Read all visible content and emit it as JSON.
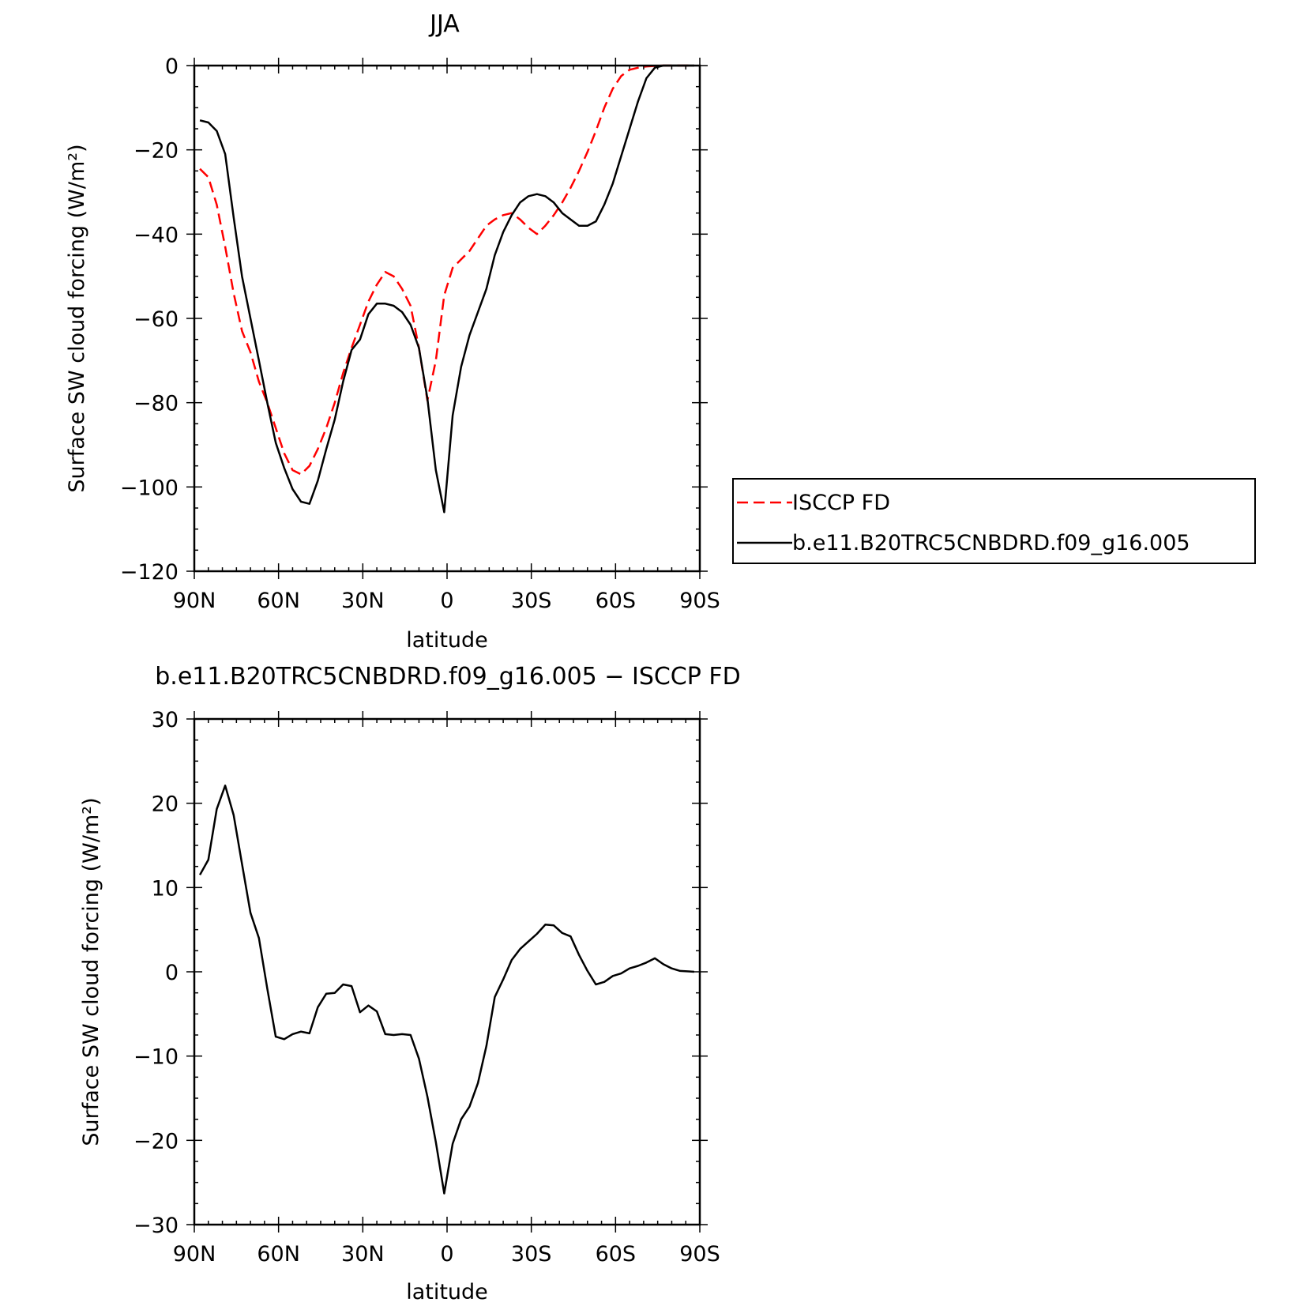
{
  "chart_data": [
    {
      "type": "line",
      "title": "JJA",
      "xlabel": "latitude",
      "ylabel": "Surface SW cloud forcing (W/m²)",
      "xlim": [
        90,
        -90
      ],
      "ylim": [
        -120,
        0
      ],
      "xticks": [
        90,
        60,
        30,
        0,
        -30,
        -60,
        -90
      ],
      "xtick_labels": [
        "90N",
        "60N",
        "30N",
        "0",
        "30S",
        "60S",
        "90S"
      ],
      "yticks": [
        0,
        -20,
        -40,
        -60,
        -80,
        -100,
        -120
      ],
      "ytick_labels": [
        "0",
        "−20",
        "−40",
        "−60",
        "−80",
        "−100",
        "−120"
      ],
      "legend_position": "right",
      "grid": false,
      "series": [
        {
          "name": "ISCCP FD",
          "color": "#ff0000",
          "dash": "dashed",
          "x": [
            88,
            85,
            82,
            79,
            76,
            73,
            70,
            67,
            64,
            61,
            58,
            55,
            52,
            49,
            46,
            43,
            40,
            37,
            34,
            31,
            28,
            25,
            22,
            19,
            16,
            13,
            10,
            7,
            4,
            1,
            -2,
            -5,
            -8,
            -11,
            -14,
            -17,
            -20,
            -23,
            -26,
            -29,
            -32,
            -35,
            -38,
            -41,
            -44,
            -47,
            -50,
            -53,
            -56,
            -59,
            -62,
            -65,
            -68,
            -71,
            -74,
            -77,
            -80,
            -83,
            -86,
            -88
          ],
          "y": [
            -24.5,
            -26.5,
            -33,
            -43,
            -54,
            -63,
            -68,
            -75,
            -80,
            -86,
            -92,
            -96,
            -97,
            -95,
            -91,
            -86,
            -80,
            -73,
            -67,
            -61.5,
            -56,
            -52,
            -49,
            -50,
            -53,
            -57,
            -67,
            -79.5,
            -70,
            -54.5,
            -48,
            -46,
            -44,
            -41,
            -38,
            -36.5,
            -35.5,
            -35,
            -36.5,
            -38.5,
            -40,
            -38,
            -35.5,
            -32.5,
            -29,
            -25,
            -20.5,
            -15.5,
            -10,
            -5.5,
            -2.5,
            -1,
            -0.5,
            -0.2,
            -0.1,
            0,
            0,
            0,
            0,
            0
          ]
        },
        {
          "name": "b.e11.B20TRC5CNBDRD.f09_g16.005",
          "color": "#000000",
          "dash": "solid",
          "x": [
            88,
            85,
            82,
            79,
            76,
            73,
            70,
            67,
            64,
            61,
            58,
            55,
            52,
            49,
            46,
            43,
            40,
            37,
            34,
            31,
            28,
            25,
            22,
            19,
            16,
            13,
            10,
            7,
            4,
            1,
            -2,
            -5,
            -8,
            -11,
            -14,
            -17,
            -20,
            -23,
            -26,
            -29,
            -32,
            -35,
            -38,
            -41,
            -44,
            -47,
            -50,
            -53,
            -56,
            -59,
            -62,
            -65,
            -68,
            -71,
            -74,
            -77,
            -80,
            -83,
            -86,
            -88
          ],
          "y": [
            -13,
            -13.5,
            -15.5,
            -21,
            -36,
            -50,
            -60,
            -70,
            -80,
            -89.5,
            -95.5,
            -100.5,
            -103.5,
            -104,
            -98.5,
            -91,
            -84,
            -75,
            -67.5,
            -65,
            -59,
            -56.5,
            -56.5,
            -57,
            -58.5,
            -61.5,
            -67,
            -79,
            -96,
            -106,
            -83,
            -71.5,
            -64,
            -58.5,
            -53,
            -45,
            -39.5,
            -35.5,
            -32.5,
            -31,
            -30.5,
            -31,
            -32.5,
            -35,
            -36.5,
            -38,
            -38,
            -37,
            -33,
            -28,
            -21.5,
            -15,
            -8.5,
            -3,
            -0.5,
            0,
            0,
            0,
            0,
            0
          ]
        }
      ]
    },
    {
      "type": "line",
      "title": "b.e11.B20TRC5CNBDRD.f09_g16.005 − ISCCP FD",
      "xlabel": "latitude",
      "ylabel": "Surface SW cloud forcing (W/m²)",
      "xlim": [
        90,
        -90
      ],
      "ylim": [
        -30,
        30
      ],
      "xticks": [
        90,
        60,
        30,
        0,
        -30,
        -60,
        -90
      ],
      "xtick_labels": [
        "90N",
        "60N",
        "30N",
        "0",
        "30S",
        "60S",
        "90S"
      ],
      "yticks": [
        30,
        20,
        10,
        0,
        -10,
        -20,
        -30
      ],
      "ytick_labels": [
        "30",
        "20",
        "10",
        "0",
        "−10",
        "−20",
        "−30"
      ],
      "grid": false,
      "series": [
        {
          "color": "#000000",
          "dash": "solid",
          "x": [
            88,
            85,
            82,
            79,
            76,
            73,
            70,
            67,
            64,
            61,
            58,
            55,
            52,
            49,
            46,
            43,
            40,
            37,
            34,
            31,
            28,
            25,
            22,
            19,
            16,
            13,
            10,
            7,
            4,
            1,
            -2,
            -5,
            -8,
            -11,
            -14,
            -17,
            -20,
            -23,
            -26,
            -29,
            -32,
            -35,
            -38,
            -41,
            -44,
            -47,
            -50,
            -53,
            -56,
            -59,
            -62,
            -65,
            -68,
            -71,
            -74,
            -77,
            -80,
            -83,
            -86,
            -88
          ],
          "y": [
            11.5,
            13.3,
            19.3,
            22.1,
            18.6,
            12.8,
            7,
            4,
            -2,
            -7.7,
            -8,
            -7.4,
            -7.1,
            -7.3,
            -4.2,
            -2.6,
            -2.5,
            -1.5,
            -1.7,
            -4.8,
            -4,
            -4.7,
            -7.4,
            -7.5,
            -7.4,
            -7.5,
            -10.3,
            -14.8,
            -20.2,
            -26.3,
            -20.4,
            -17.5,
            -16,
            -13.2,
            -8.8,
            -3,
            -0.9,
            1.4,
            2.7,
            3.6,
            4.5,
            5.6,
            5.5,
            4.6,
            4.2,
            2,
            0.1,
            -1.5,
            -1.2,
            -0.5,
            -0.2,
            0.4,
            0.7,
            1.1,
            1.6,
            0.9,
            0.4,
            0.1,
            0.05,
            0
          ]
        }
      ]
    }
  ]
}
